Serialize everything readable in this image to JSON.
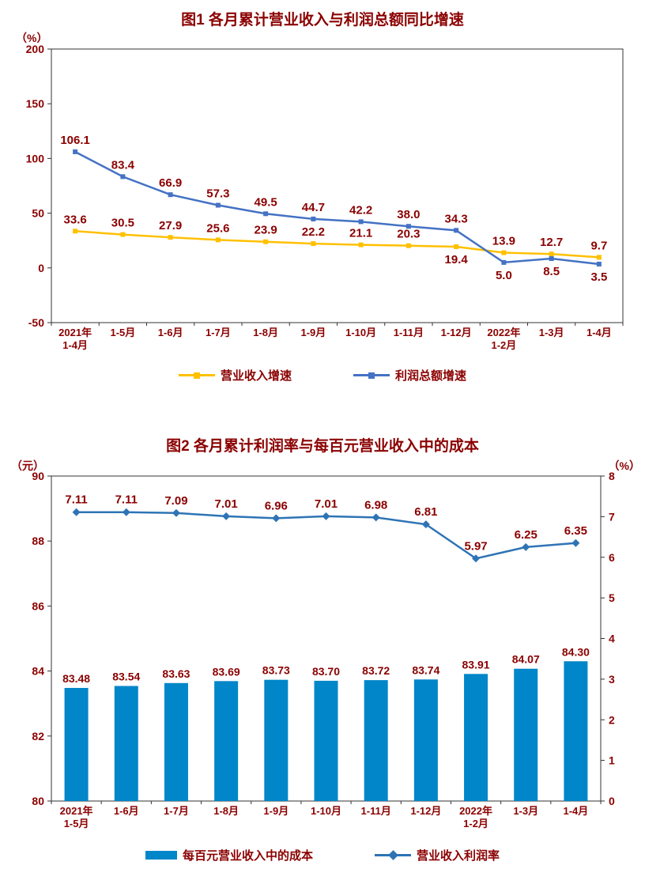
{
  "colors": {
    "text": "#8B0000",
    "axis": "#333333",
    "background": "#FFFFFF"
  },
  "chart_data": [
    {
      "type": "line",
      "title": "图1 各月累计营业收入与利润总额同比增速",
      "y_unit": "（%）",
      "ylim": [
        -50,
        200
      ],
      "yticks": [
        200,
        150,
        100,
        50,
        0,
        -50
      ],
      "label_decimals": 1,
      "grid": false,
      "legend_position": "bottom",
      "categories": [
        "2021年\n1-4月",
        "1-5月",
        "1-6月",
        "1-7月",
        "1-8月",
        "1-9月",
        "1-10月",
        "1-11月",
        "1-12月",
        "2022年\n1-2月",
        "1-3月",
        "1-4月"
      ],
      "series": [
        {
          "id": "revenue-growth",
          "name": "营业收入增速",
          "color": "#FFC000",
          "marker": "square",
          "values": [
            33.6,
            30.5,
            27.9,
            25.6,
            23.9,
            22.2,
            21.1,
            20.3,
            19.4,
            13.9,
            12.7,
            9.7
          ],
          "labels_below": [
            8
          ]
        },
        {
          "id": "profit-growth",
          "name": "利润总额增速",
          "color": "#4472C4",
          "marker": "square",
          "values": [
            106.1,
            83.4,
            66.9,
            57.3,
            49.5,
            44.7,
            42.2,
            38.0,
            34.3,
            5.0,
            8.5,
            3.5
          ],
          "labels_below": [
            9,
            10,
            11
          ]
        }
      ]
    },
    {
      "type": "bar+line",
      "title": "图2 各月累计利润率与每百元营业收入中的成本",
      "left_unit": "（元）",
      "right_unit": "（%）",
      "left_ylim": [
        80,
        90
      ],
      "left_yticks": [
        90,
        88,
        86,
        84,
        82,
        80
      ],
      "right_ylim": [
        0,
        8
      ],
      "right_yticks": [
        8,
        7,
        6,
        5,
        4,
        3,
        2,
        1,
        0
      ],
      "grid": false,
      "legend_position": "bottom",
      "categories": [
        "2021年\n1-5月",
        "1-6月",
        "1-7月",
        "1-8月",
        "1-9月",
        "1-10月",
        "1-11月",
        "1-12月",
        "2022年\n1-2月",
        "1-3月",
        "1-4月"
      ],
      "bar_series": {
        "id": "cost-per-100-yuan",
        "name": "每百元营业收入中的成本",
        "color": "#0086C9",
        "axis": "left",
        "label_decimals": 2,
        "values": [
          83.48,
          83.54,
          83.63,
          83.69,
          83.73,
          83.7,
          83.72,
          83.74,
          83.91,
          84.07,
          84.3
        ]
      },
      "line_series": {
        "id": "profit-margin",
        "name": "营业收入利润率",
        "color": "#2E74B5",
        "axis": "right",
        "marker": "diamond",
        "label_decimals": 2,
        "values": [
          7.11,
          7.11,
          7.09,
          7.01,
          6.96,
          7.01,
          6.98,
          6.81,
          5.97,
          6.25,
          6.35
        ]
      }
    }
  ]
}
